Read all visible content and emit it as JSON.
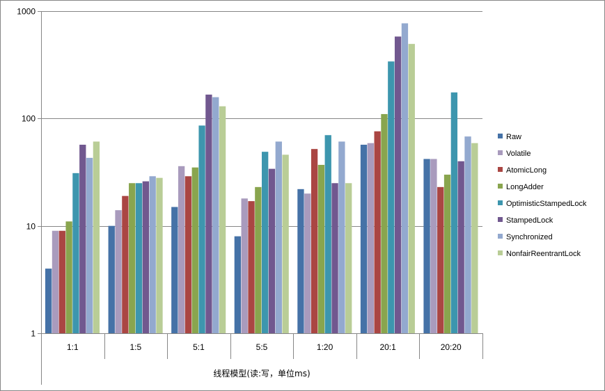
{
  "chart_data": {
    "type": "bar",
    "xlabel": "线程模型(读:写，单位ms)",
    "ylabel": "",
    "yscale": "log",
    "ylim": [
      1,
      1000
    ],
    "y_ticks": [
      "1",
      "10",
      "100",
      "1000"
    ],
    "grid": "horizontal major gridlines",
    "legend_position": "right",
    "categories": [
      "1:1",
      "1:5",
      "5:1",
      "5:5",
      "1:20",
      "20:1",
      "20:20"
    ],
    "series": [
      {
        "name": "Raw",
        "color": "#4572A7",
        "values": [
          4,
          10,
          15,
          8,
          22,
          57,
          42
        ]
      },
      {
        "name": "Volatile",
        "color": "#A99BBD",
        "values": [
          9,
          14,
          36,
          18,
          20,
          59,
          42
        ]
      },
      {
        "name": "AtomicLong",
        "color": "#AA4643",
        "values": [
          9,
          19,
          29,
          17,
          52,
          76,
          23
        ]
      },
      {
        "name": "LongAdder",
        "color": "#89A54E",
        "values": [
          11,
          25,
          35,
          23,
          37,
          110,
          30
        ]
      },
      {
        "name": "OptimisticStampedLock",
        "color": "#3D96AE",
        "values": [
          31,
          25,
          86,
          49,
          70,
          340,
          175
        ]
      },
      {
        "name": "StampedLock",
        "color": "#71588F",
        "values": [
          57,
          26,
          167,
          34,
          25,
          580,
          40
        ]
      },
      {
        "name": "Synchronized",
        "color": "#93A9CF",
        "values": [
          43,
          29,
          158,
          61,
          61,
          770,
          68
        ]
      },
      {
        "name": "NonfairReentrantLock",
        "color": "#B9CD96",
        "values": [
          61,
          28,
          130,
          46,
          25,
          495,
          59
        ]
      }
    ]
  }
}
